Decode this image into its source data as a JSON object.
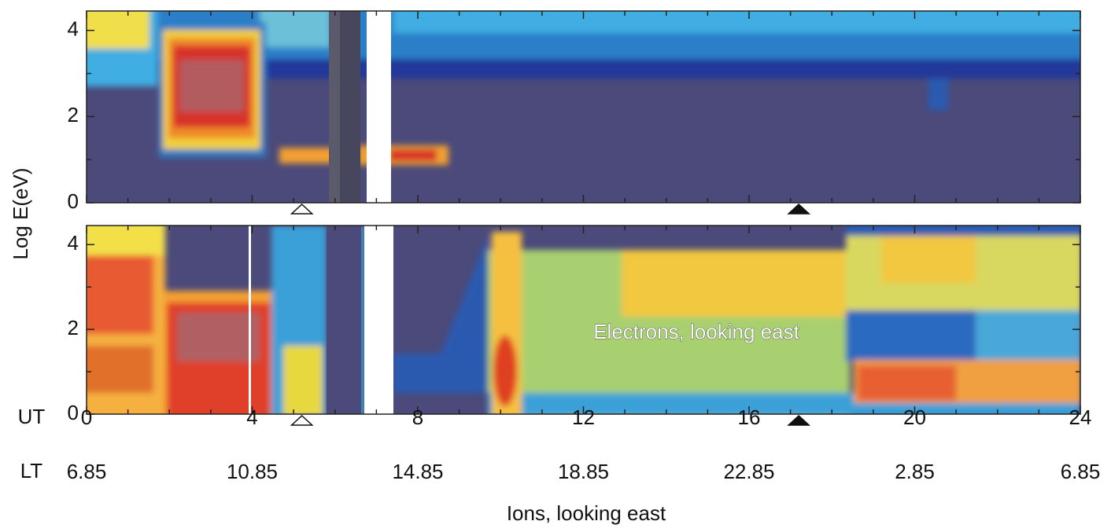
{
  "chart_data": {
    "type": "spectrogram",
    "ylabel": "Log E(eV)",
    "x_label": "UT",
    "x2_label": "LT",
    "xlim": [
      0,
      24
    ],
    "xticks": [
      0,
      4,
      8,
      12,
      16,
      20,
      24
    ],
    "xminorticks": [
      1,
      2,
      3,
      5,
      6,
      7,
      9,
      10,
      11,
      13,
      14,
      15,
      17,
      18,
      19,
      21,
      22,
      23
    ],
    "lt_labels": [
      6.85,
      10.85,
      14.85,
      18.85,
      22.85,
      2.85,
      6.85
    ],
    "ylim": [
      0,
      4.45
    ],
    "yticks": [
      0,
      2,
      4
    ],
    "yminorticks": [
      1,
      3
    ],
    "panels": [
      {
        "label": "Ions, looking east"
      },
      {
        "label": "Electrons, looking east"
      }
    ],
    "markers": [
      {
        "x": 5.2,
        "filled": false
      },
      {
        "x": 17.2,
        "filled": true
      }
    ]
  }
}
